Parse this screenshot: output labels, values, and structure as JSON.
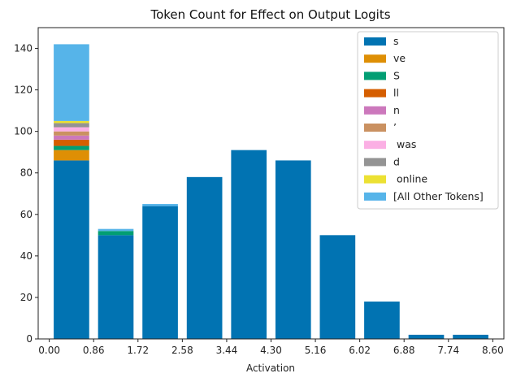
{
  "chart_data": {
    "type": "bar",
    "stacked": true,
    "title": "Token Count for Effect on Output Logits",
    "xlabel": "Activation",
    "ylabel": "",
    "ylim": [
      0,
      150
    ],
    "xlim": [
      -0.215,
      8.815
    ],
    "bin_width": 0.86,
    "yticks": [
      0,
      20,
      40,
      60,
      80,
      100,
      120,
      140
    ],
    "xticks": [
      0.0,
      0.86,
      1.72,
      2.58,
      3.44,
      4.3,
      5.16,
      6.02,
      6.88,
      7.74,
      8.6
    ],
    "xtick_labels": [
      "0.00",
      "0.86",
      "1.72",
      "2.58",
      "3.44",
      "4.30",
      "5.16",
      "6.02",
      "6.88",
      "7.74",
      "8.60"
    ],
    "bin_starts": [
      0.0,
      0.86,
      1.72,
      2.58,
      3.44,
      4.3,
      5.16,
      6.02,
      6.88,
      7.74
    ],
    "legend_position": "upper right",
    "series": [
      {
        "name": "s",
        "color": "#0173b2",
        "values": [
          86,
          50,
          64,
          78,
          91,
          86,
          50,
          18,
          2,
          2
        ]
      },
      {
        "name": "ve",
        "color": "#de8f05",
        "values": [
          5,
          0,
          0,
          0,
          0,
          0,
          0,
          0,
          0,
          0
        ]
      },
      {
        "name": "S",
        "color": "#029e73",
        "values": [
          2,
          2,
          0,
          0,
          0,
          0,
          0,
          0,
          0,
          0
        ]
      },
      {
        "name": "ll",
        "color": "#d55e00",
        "values": [
          3,
          0,
          0,
          0,
          0,
          0,
          0,
          0,
          0,
          0
        ]
      },
      {
        "name": "n",
        "color": "#cc78bc",
        "values": [
          2,
          0,
          0,
          0,
          0,
          0,
          0,
          0,
          0,
          0
        ]
      },
      {
        "name": "’",
        "color": "#ca9161",
        "values": [
          2,
          0,
          0,
          0,
          0,
          0,
          0,
          0,
          0,
          0
        ]
      },
      {
        "name": " was",
        "color": "#fbafe4",
        "values": [
          2,
          0,
          0,
          0,
          0,
          0,
          0,
          0,
          0,
          0
        ]
      },
      {
        "name": "d",
        "color": "#949494",
        "values": [
          2,
          0,
          0,
          0,
          0,
          0,
          0,
          0,
          0,
          0
        ]
      },
      {
        "name": " online",
        "color": "#ece133",
        "values": [
          1,
          0,
          0,
          0,
          0,
          0,
          0,
          0,
          0,
          0
        ]
      },
      {
        "name": "[All Other Tokens]",
        "color": "#56b4e9",
        "values": [
          37,
          1,
          1,
          0,
          0,
          0,
          0,
          0,
          0,
          0
        ]
      }
    ]
  }
}
